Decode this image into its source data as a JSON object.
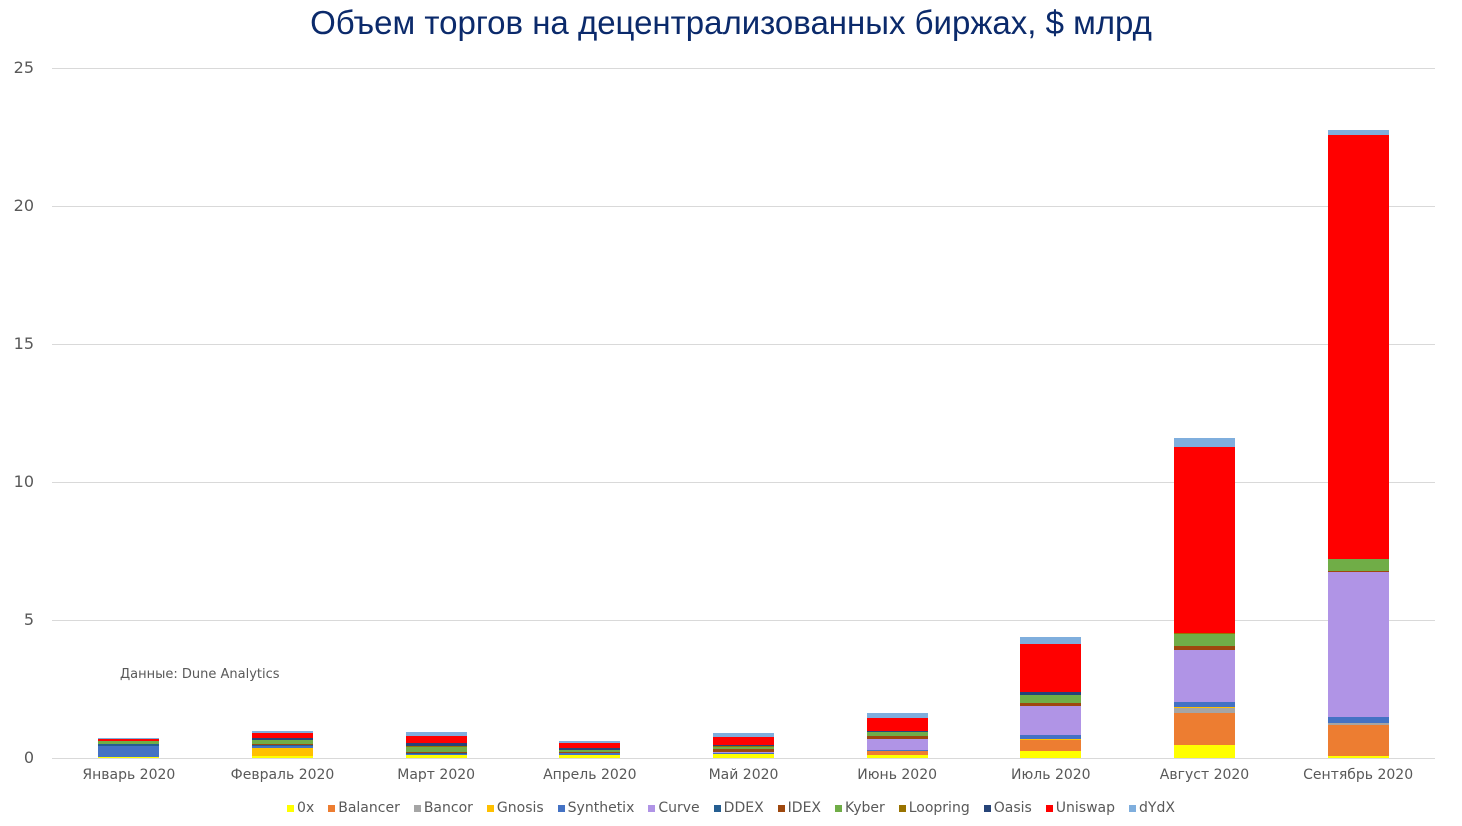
{
  "chart_data": {
    "type": "bar",
    "stacked": true,
    "title": "Объем торгов на децентрализованных биржах, $ млрд",
    "xlabel": "",
    "ylabel": "",
    "ylim": [
      0,
      25
    ],
    "yticks": [
      0,
      5,
      10,
      15,
      20,
      25
    ],
    "grid": true,
    "legend_position": "bottom",
    "annotation": "Данные: Dune Analytics",
    "categories": [
      "Январь 2020",
      "Февраль 2020",
      "Март 2020",
      "Апрель 2020",
      "Май 2020",
      "Июнь 2020",
      "Июль 2020",
      "Август 2020",
      "Сентябрь 2020"
    ],
    "series": [
      {
        "name": "0x",
        "color": "#ffff00",
        "values": [
          0.05,
          0.08,
          0.1,
          0.12,
          0.13,
          0.12,
          0.25,
          0.47,
          0.07
        ]
      },
      {
        "name": "Balancer",
        "color": "#ed7d31",
        "values": [
          0,
          0,
          0,
          0,
          0,
          0.12,
          0.4,
          1.16,
          1.12
        ]
      },
      {
        "name": "Bancor",
        "color": "#a5a5a5",
        "values": [
          0,
          0,
          0,
          0,
          0,
          0,
          0,
          0.18,
          0.07
        ]
      },
      {
        "name": "Gnosis",
        "color": "#ffc000",
        "values": [
          0,
          0.3,
          0,
          0,
          0,
          0,
          0.04,
          0.04,
          0
        ]
      },
      {
        "name": "Synthetix",
        "color": "#4472c4",
        "values": [
          0.4,
          0.05,
          0.05,
          0.05,
          0.05,
          0.05,
          0.15,
          0.18,
          0.22
        ]
      },
      {
        "name": "Curve",
        "color": "#b094e6",
        "values": [
          0,
          0,
          0,
          0,
          0.03,
          0.4,
          1.05,
          1.88,
          5.25
        ]
      },
      {
        "name": "DDEX",
        "color": "#255e91",
        "values": [
          0.05,
          0.03,
          0.03,
          0.03,
          0,
          0,
          0,
          0,
          0
        ]
      },
      {
        "name": "IDEX",
        "color": "#9e480e",
        "values": [
          0,
          0.03,
          0.03,
          0.03,
          0.1,
          0.1,
          0.1,
          0.15,
          0.04
        ]
      },
      {
        "name": "Kyber",
        "color": "#70ad47",
        "values": [
          0.1,
          0.15,
          0.2,
          0.07,
          0.1,
          0.15,
          0.3,
          0.43,
          0.43
        ]
      },
      {
        "name": "Loopring",
        "color": "#997300",
        "values": [
          0,
          0,
          0.03,
          0,
          0.03,
          0,
          0,
          0.04,
          0
        ]
      },
      {
        "name": "Oasis",
        "color": "#264478",
        "values": [
          0,
          0.1,
          0.1,
          0.05,
          0.03,
          0.05,
          0.1,
          0,
          0
        ]
      },
      {
        "name": "Uniswap",
        "color": "#ff0000",
        "values": [
          0.1,
          0.15,
          0.25,
          0.18,
          0.3,
          0.45,
          1.75,
          6.74,
          15.36
        ]
      },
      {
        "name": "dYdX",
        "color": "#7faedd",
        "values": [
          0.03,
          0.1,
          0.17,
          0.1,
          0.15,
          0.2,
          0.25,
          0.33,
          0.18
        ]
      }
    ]
  }
}
